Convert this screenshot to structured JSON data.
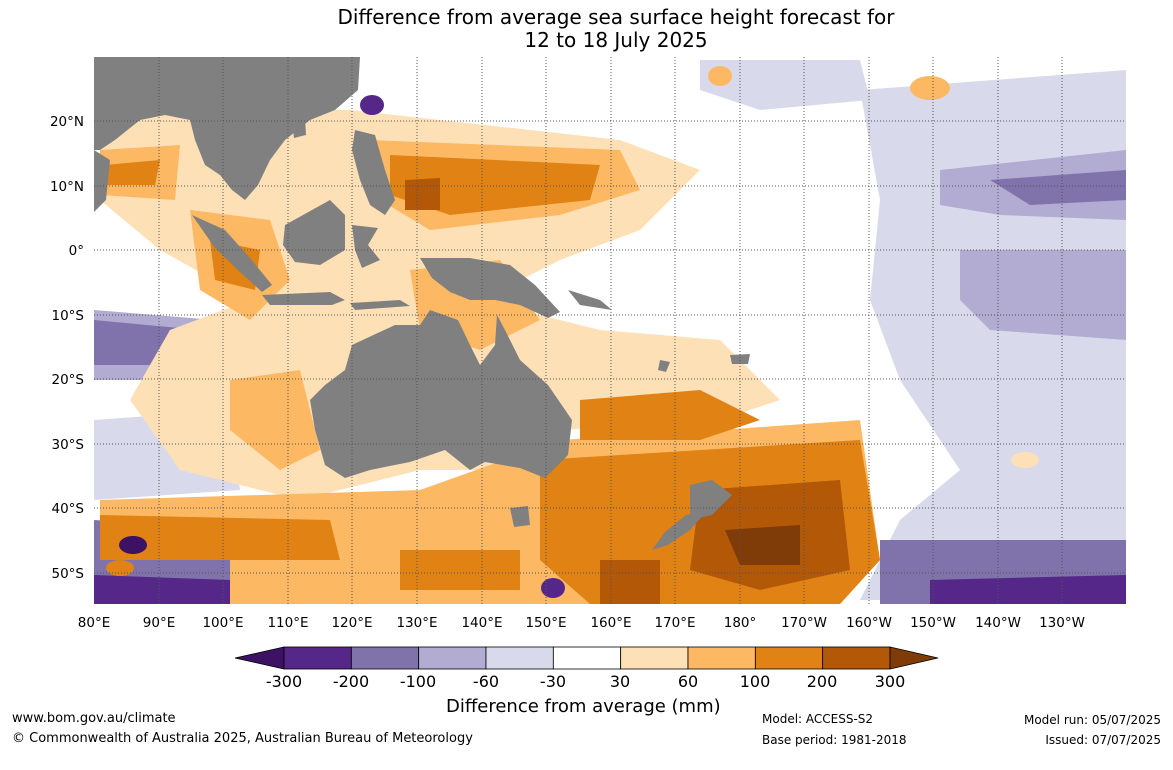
{
  "title": {
    "line1": "Difference from average sea surface height forecast for",
    "line2": "12 to 18 July 2025"
  },
  "map": {
    "lon_ticks": [
      "80°E",
      "90°E",
      "100°E",
      "110°E",
      "120°E",
      "130°E",
      "140°E",
      "150°E",
      "160°E",
      "170°E",
      "180°",
      "170°W",
      "160°W",
      "150°W",
      "140°W",
      "130°W"
    ],
    "lat_ticks": [
      "20°N",
      "10°N",
      "0°",
      "10°S",
      "20°S",
      "30°S",
      "40°S",
      "50°S"
    ],
    "colors": {
      "land": "#808080",
      "grid": "#555555"
    }
  },
  "legend": {
    "title": "Difference from average (mm)",
    "tick_labels": [
      "-300",
      "-200",
      "-100",
      "-60",
      "-30",
      "30",
      "60",
      "100",
      "200",
      "300"
    ],
    "colors": [
      "#3d1163",
      "#542788",
      "#8073ac",
      "#b2abd2",
      "#d8daeb",
      "#ffffff",
      "#fee0b6",
      "#fdb863",
      "#e08214",
      "#b35806",
      "#7f3b08"
    ]
  },
  "footer": {
    "website": "www.bom.gov.au/climate",
    "copyright": "© Commonwealth of Australia 2025, Australian Bureau of Meteorology",
    "model": "Model: ACCESS-S2",
    "base_period": "Base period: 1981-2018",
    "model_run": "Model run: 05/07/2025",
    "issued": "Issued: 07/07/2025"
  }
}
